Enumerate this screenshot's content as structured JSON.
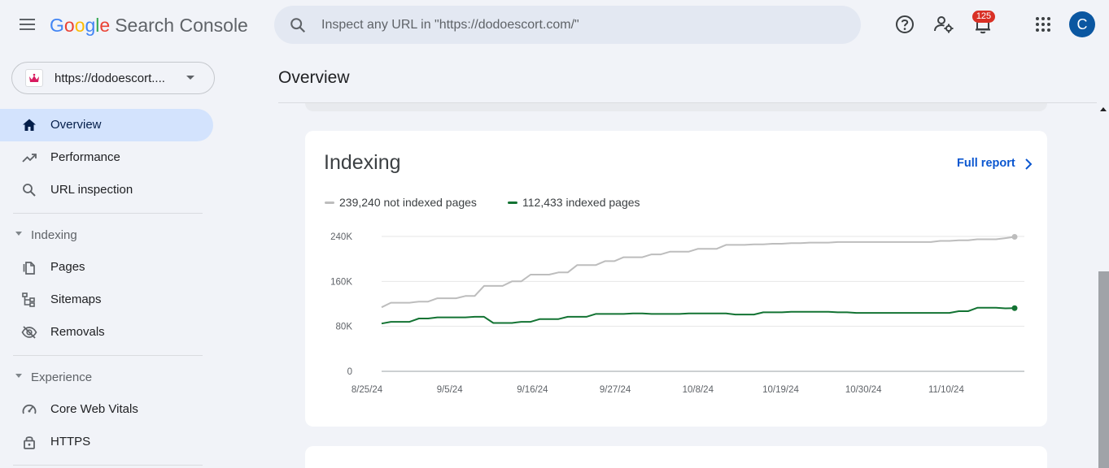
{
  "header": {
    "logo_text": "Google",
    "product_name": "Search Console",
    "search_placeholder": "Inspect any URL in \"https://dodoescort.com/\"",
    "notifications_count": "125",
    "avatar_letter": "C"
  },
  "sidebar": {
    "property_label": "https://dodoescort....",
    "items": {
      "overview": "Overview",
      "performance": "Performance",
      "url_inspection": "URL inspection",
      "pages": "Pages",
      "sitemaps": "Sitemaps",
      "removals": "Removals",
      "core_web_vitals": "Core Web Vitals",
      "https": "HTTPS"
    },
    "sections": {
      "indexing": "Indexing",
      "experience": "Experience"
    }
  },
  "main": {
    "page_title": "Overview",
    "indexing_card": {
      "title": "Indexing",
      "full_report_label": "Full report",
      "legend": {
        "not_indexed": "239,240 not indexed pages",
        "indexed": "112,433 indexed pages"
      }
    }
  },
  "colors": {
    "accent": "#0b57d0",
    "not_indexed_series": "#bdbdbd",
    "indexed_series": "#137333",
    "active_nav": "#d3e3fd"
  },
  "chart_data": {
    "type": "line",
    "x_tick_labels": [
      "8/25/24",
      "9/5/24",
      "9/16/24",
      "9/27/24",
      "10/8/24",
      "10/19/24",
      "10/30/24",
      "11/10/24"
    ],
    "y_tick_labels": [
      "240K",
      "160K",
      "80K",
      "0"
    ],
    "ylim": [
      0,
      240000
    ],
    "series": [
      {
        "name": "239,240 not indexed pages",
        "color": "#bdbdbd",
        "values": [
          114000,
          122000,
          122000,
          122000,
          124000,
          124000,
          130000,
          130000,
          130000,
          134000,
          134000,
          152000,
          152000,
          152000,
          160000,
          160000,
          172000,
          172000,
          172000,
          176000,
          176000,
          189000,
          189000,
          189000,
          196000,
          196000,
          203000,
          203000,
          203000,
          208000,
          208000,
          213000,
          213000,
          213000,
          218000,
          218000,
          218000,
          225000,
          225000,
          225000,
          226000,
          226000,
          227000,
          227000,
          228000,
          228000,
          229000,
          229000,
          229000,
          230000,
          230000,
          230000,
          230000,
          230000,
          230000,
          230000,
          230000,
          230000,
          230000,
          230000,
          232000,
          232000,
          233000,
          233000,
          235000,
          235000,
          235000,
          237000,
          239240
        ]
      },
      {
        "name": "112,433 indexed pages",
        "color": "#137333",
        "values": [
          85000,
          88000,
          88000,
          88000,
          94000,
          94000,
          96000,
          96000,
          96000,
          96000,
          97000,
          97000,
          86000,
          86000,
          86000,
          88000,
          88000,
          93000,
          93000,
          93000,
          97000,
          97000,
          97000,
          102000,
          102000,
          102000,
          102000,
          103000,
          103000,
          102000,
          102000,
          102000,
          102000,
          103000,
          103000,
          103000,
          103000,
          103000,
          101000,
          101000,
          101000,
          105000,
          105000,
          105000,
          106000,
          106000,
          106000,
          106000,
          106000,
          105000,
          105000,
          104000,
          104000,
          104000,
          104000,
          104000,
          104000,
          104000,
          104000,
          104000,
          104000,
          104000,
          107000,
          107000,
          113000,
          113000,
          113000,
          112000,
          112433
        ]
      }
    ],
    "grid": true,
    "legend_position": "top-left"
  }
}
